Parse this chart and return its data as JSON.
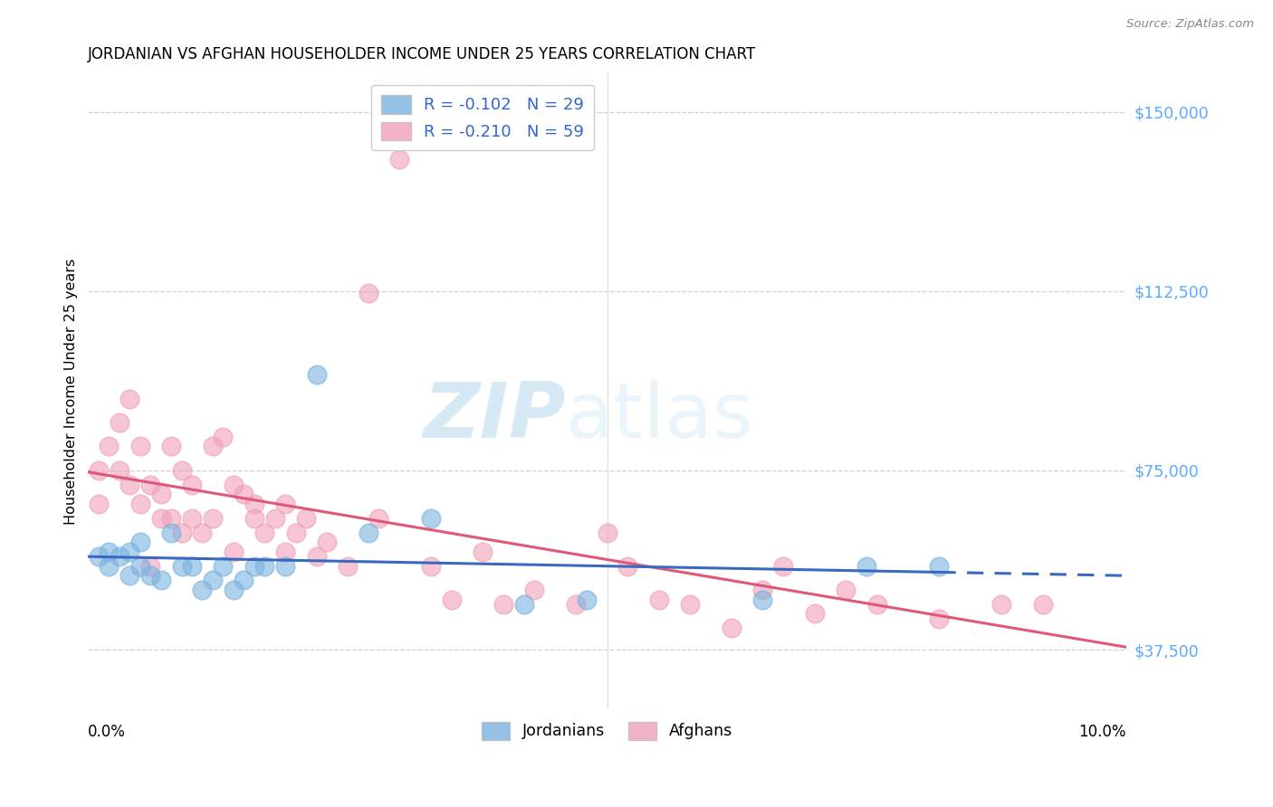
{
  "title": "JORDANIAN VS AFGHAN HOUSEHOLDER INCOME UNDER 25 YEARS CORRELATION CHART",
  "source": "Source: ZipAtlas.com",
  "ylabel": "Householder Income Under 25 years",
  "ytick_labels": [
    "$37,500",
    "$75,000",
    "$112,500",
    "$150,000"
  ],
  "ytick_values": [
    37500,
    75000,
    112500,
    150000
  ],
  "watermark_zip": "ZIP",
  "watermark_atlas": "atlas",
  "legend_jordanian_R": "R = -0.102",
  "legend_jordanian_N": "N = 29",
  "legend_afghan_R": "R = -0.210",
  "legend_afghan_N": "N = 59",
  "xlim": [
    0.0,
    0.1
  ],
  "ylim": [
    25000,
    158000
  ],
  "background_color": "#ffffff",
  "grid_color": "#d0d0d0",
  "jordanian_color": "#7ab3e0",
  "afghan_color": "#f0a0b8",
  "jordanian_line_color": "#3a6abf",
  "afghan_line_color": "#e05878",
  "ytick_color": "#5aaaff",
  "jordanian_x": [
    0.001,
    0.002,
    0.002,
    0.003,
    0.004,
    0.004,
    0.005,
    0.005,
    0.006,
    0.007,
    0.008,
    0.009,
    0.01,
    0.011,
    0.012,
    0.013,
    0.014,
    0.015,
    0.016,
    0.017,
    0.019,
    0.022,
    0.027,
    0.033,
    0.042,
    0.048,
    0.065,
    0.075,
    0.082
  ],
  "jordanian_y": [
    57000,
    58000,
    55000,
    57000,
    53000,
    58000,
    55000,
    60000,
    53000,
    52000,
    62000,
    55000,
    55000,
    50000,
    52000,
    55000,
    50000,
    52000,
    55000,
    55000,
    55000,
    95000,
    62000,
    65000,
    47000,
    48000,
    48000,
    55000,
    55000
  ],
  "afghan_x": [
    0.001,
    0.001,
    0.002,
    0.003,
    0.003,
    0.004,
    0.004,
    0.005,
    0.005,
    0.006,
    0.006,
    0.007,
    0.007,
    0.008,
    0.008,
    0.009,
    0.009,
    0.01,
    0.01,
    0.011,
    0.012,
    0.012,
    0.013,
    0.014,
    0.014,
    0.015,
    0.016,
    0.016,
    0.017,
    0.018,
    0.019,
    0.019,
    0.02,
    0.021,
    0.022,
    0.023,
    0.025,
    0.027,
    0.028,
    0.03,
    0.033,
    0.035,
    0.038,
    0.04,
    0.043,
    0.047,
    0.05,
    0.052,
    0.055,
    0.058,
    0.062,
    0.065,
    0.067,
    0.07,
    0.073,
    0.076,
    0.082,
    0.088,
    0.092
  ],
  "afghan_y": [
    68000,
    75000,
    80000,
    85000,
    75000,
    90000,
    72000,
    80000,
    68000,
    72000,
    55000,
    70000,
    65000,
    80000,
    65000,
    75000,
    62000,
    72000,
    65000,
    62000,
    80000,
    65000,
    82000,
    72000,
    58000,
    70000,
    65000,
    68000,
    62000,
    65000,
    58000,
    68000,
    62000,
    65000,
    57000,
    60000,
    55000,
    112000,
    65000,
    140000,
    55000,
    48000,
    58000,
    47000,
    50000,
    47000,
    62000,
    55000,
    48000,
    47000,
    42000,
    50000,
    55000,
    45000,
    50000,
    47000,
    44000,
    47000,
    47000
  ]
}
